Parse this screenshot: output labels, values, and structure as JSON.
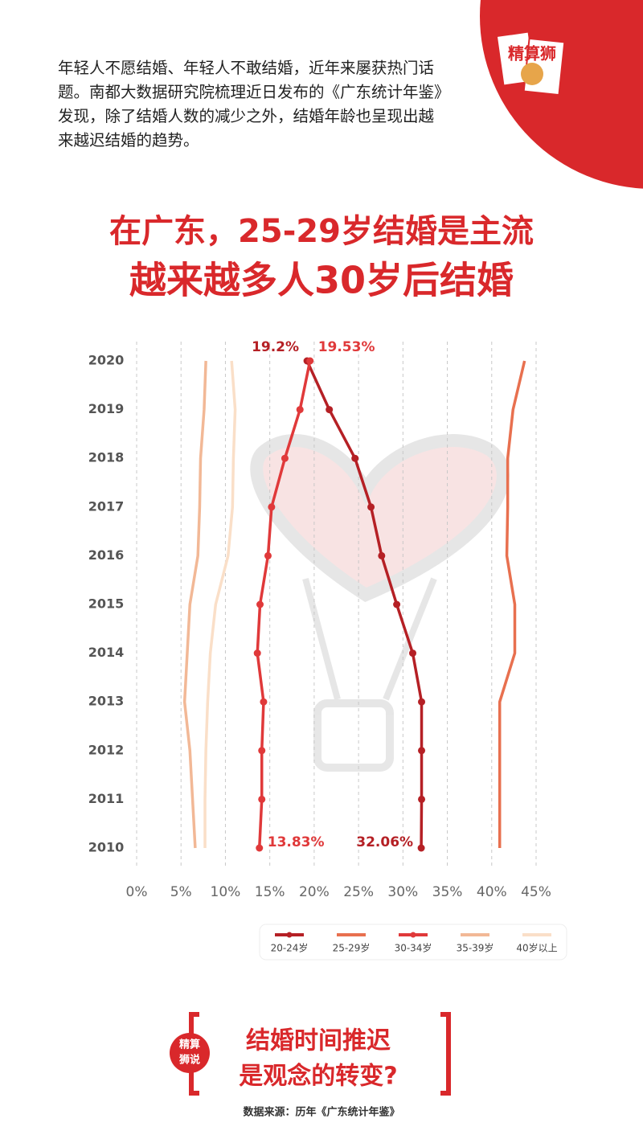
{
  "intro": "年轻人不愿结婚、年轻人不敢结婚，近年来屡获热门话题。南都大数据研究院梳理近日发布的《广东统计年鉴》发现，除了结婚人数的减少之外，结婚年龄也呈现出越来越迟结婚的趋势。",
  "stamp": "精算狮",
  "title_lines": [
    "在广东，25-29岁结婚是主流",
    "越来越多人30岁后结婚"
  ],
  "chart_data": {
    "type": "line",
    "orientation": "horizontal",
    "categories": [
      "2010",
      "2011",
      "2012",
      "2013",
      "2014",
      "2015",
      "2016",
      "2017",
      "2018",
      "2019",
      "2020"
    ],
    "xlim": [
      0,
      45
    ],
    "xticks": [
      {
        "value": 0,
        "label": "0%"
      },
      {
        "value": 5,
        "label": "5%"
      },
      {
        "value": 10,
        "label": "10%"
      },
      {
        "value": 15,
        "label": "15%"
      },
      {
        "value": 20,
        "label": "20%"
      },
      {
        "value": 25,
        "label": "25%"
      },
      {
        "value": 30,
        "label": "30%"
      },
      {
        "value": 35,
        "label": "35%"
      },
      {
        "value": 40,
        "label": "40%"
      },
      {
        "value": 45,
        "label": "45%"
      }
    ],
    "grid": true,
    "series": [
      {
        "name": "20-24岁",
        "color": "#b52025",
        "markers": true,
        "values": [
          32.06,
          32.1,
          32.1,
          32.1,
          31.1,
          29.3,
          27.6,
          26.4,
          24.6,
          21.7,
          19.2
        ],
        "value_labels": [
          "32.06%",
          null,
          null,
          null,
          null,
          null,
          null,
          null,
          null,
          null,
          "19.2%"
        ]
      },
      {
        "name": "25-29岁",
        "color": "#e8704f",
        "markers": false,
        "values": [
          40.9,
          40.9,
          40.9,
          40.9,
          42.6,
          42.6,
          41.7,
          41.8,
          41.8,
          42.4,
          43.7
        ]
      },
      {
        "name": "30-34岁",
        "color": "#e0393a",
        "markers": true,
        "values": [
          13.83,
          14.1,
          14.1,
          14.3,
          13.6,
          13.9,
          14.8,
          15.2,
          16.7,
          18.4,
          19.53
        ],
        "value_labels": [
          "13.83%",
          null,
          null,
          null,
          null,
          null,
          null,
          null,
          null,
          null,
          "19.53%"
        ]
      },
      {
        "name": "35-39岁",
        "color": "#f2b896",
        "markers": false,
        "values": [
          6.6,
          6.3,
          6.0,
          5.4,
          5.7,
          6.0,
          6.9,
          7.1,
          7.2,
          7.6,
          7.8
        ]
      },
      {
        "name": "40岁以上",
        "color": "#fadfc8",
        "markers": false,
        "values": [
          7.7,
          7.7,
          7.8,
          8.0,
          8.3,
          8.9,
          10.3,
          10.8,
          10.9,
          11.1,
          10.7
        ]
      }
    ]
  },
  "badge": [
    "精算",
    "狮说"
  ],
  "conclusion": [
    "结婚时间推迟",
    "是观念的转变?"
  ],
  "source": "数据来源：历年《广东统计年鉴》"
}
